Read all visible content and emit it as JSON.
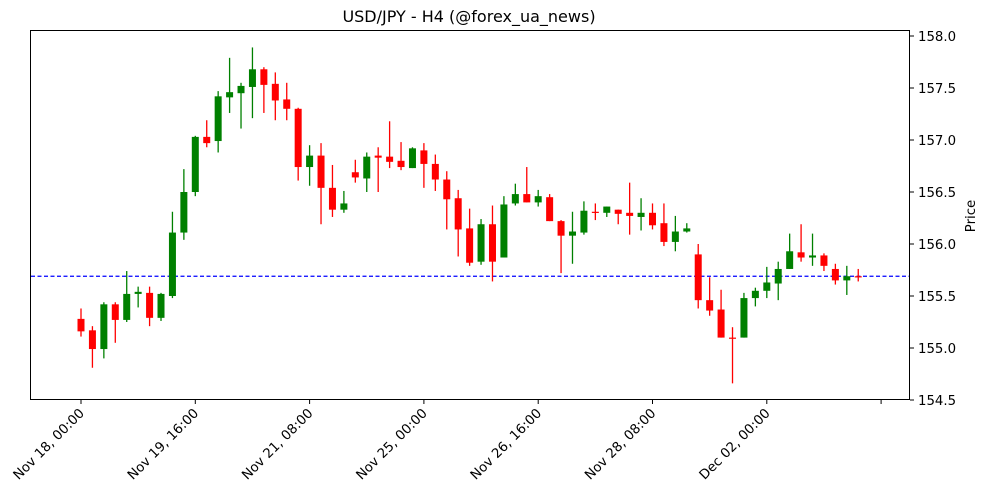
{
  "chart_data": {
    "type": "candlestick",
    "title": "USD/JPY - H4 (@forex_ua_news)",
    "xlabel": "",
    "ylabel": "Price",
    "ylim": [
      154.5,
      158.0
    ],
    "yticks": [
      "154.5",
      "155.0",
      "155.5",
      "156.0",
      "156.5",
      "157.0",
      "157.5",
      "158.0"
    ],
    "xtick_labels": [
      "Nov 18, 00:00",
      "Nov 19, 16:00",
      "Nov 21, 08:00",
      "Nov 25, 00:00",
      "Nov 26, 16:00",
      "Nov 28, 08:00",
      "Dec 02, 00:00",
      ""
    ],
    "xtick_candle_index": [
      0,
      10,
      20,
      30,
      40,
      50,
      60,
      70
    ],
    "grid": false,
    "colors": {
      "up": "#008000",
      "down": "#ff0000",
      "hline": "#0000ff"
    },
    "hline": {
      "value": 155.69,
      "style": "dashed",
      "color": "#0000ff"
    },
    "series": [
      {
        "name": "USD/JPY H4",
        "candles": [
          {
            "o": 155.28,
            "h": 155.38,
            "l": 155.11,
            "c": 155.16
          },
          {
            "o": 155.17,
            "h": 155.21,
            "l": 154.81,
            "c": 154.99
          },
          {
            "o": 154.99,
            "h": 155.44,
            "l": 154.9,
            "c": 155.42
          },
          {
            "o": 155.42,
            "h": 155.44,
            "l": 155.05,
            "c": 155.27
          },
          {
            "o": 155.27,
            "h": 155.74,
            "l": 155.25,
            "c": 155.52
          },
          {
            "o": 155.52,
            "h": 155.59,
            "l": 155.39,
            "c": 155.54
          },
          {
            "o": 155.53,
            "h": 155.59,
            "l": 155.21,
            "c": 155.29
          },
          {
            "o": 155.29,
            "h": 155.53,
            "l": 155.26,
            "c": 155.52
          },
          {
            "o": 155.5,
            "h": 156.31,
            "l": 155.48,
            "c": 156.11
          },
          {
            "o": 156.11,
            "h": 156.72,
            "l": 156.04,
            "c": 156.5
          },
          {
            "o": 156.5,
            "h": 157.04,
            "l": 156.46,
            "c": 157.03
          },
          {
            "o": 157.03,
            "h": 157.19,
            "l": 156.93,
            "c": 156.97
          },
          {
            "o": 156.99,
            "h": 157.47,
            "l": 156.88,
            "c": 157.42
          },
          {
            "o": 157.41,
            "h": 157.79,
            "l": 157.26,
            "c": 157.46
          },
          {
            "o": 157.45,
            "h": 157.55,
            "l": 157.11,
            "c": 157.52
          },
          {
            "o": 157.51,
            "h": 157.89,
            "l": 157.21,
            "c": 157.68
          },
          {
            "o": 157.68,
            "h": 157.7,
            "l": 157.26,
            "c": 157.53
          },
          {
            "o": 157.54,
            "h": 157.65,
            "l": 157.19,
            "c": 157.38
          },
          {
            "o": 157.39,
            "h": 157.55,
            "l": 157.19,
            "c": 157.3
          },
          {
            "o": 157.3,
            "h": 157.31,
            "l": 156.61,
            "c": 156.74
          },
          {
            "o": 156.74,
            "h": 156.95,
            "l": 156.56,
            "c": 156.85
          },
          {
            "o": 156.85,
            "h": 156.97,
            "l": 156.19,
            "c": 156.54
          },
          {
            "o": 156.54,
            "h": 156.76,
            "l": 156.26,
            "c": 156.33
          },
          {
            "o": 156.33,
            "h": 156.51,
            "l": 156.3,
            "c": 156.39
          },
          {
            "o": 156.69,
            "h": 156.81,
            "l": 156.59,
            "c": 156.64
          },
          {
            "o": 156.63,
            "h": 156.88,
            "l": 156.5,
            "c": 156.84
          },
          {
            "o": 156.85,
            "h": 156.93,
            "l": 156.5,
            "c": 156.83
          },
          {
            "o": 156.84,
            "h": 157.18,
            "l": 156.73,
            "c": 156.79
          },
          {
            "o": 156.8,
            "h": 156.98,
            "l": 156.71,
            "c": 156.74
          },
          {
            "o": 156.73,
            "h": 156.93,
            "l": 156.73,
            "c": 156.92
          },
          {
            "o": 156.9,
            "h": 156.97,
            "l": 156.54,
            "c": 156.77
          },
          {
            "o": 156.77,
            "h": 156.86,
            "l": 156.51,
            "c": 156.62
          },
          {
            "o": 156.62,
            "h": 156.7,
            "l": 156.14,
            "c": 156.43
          },
          {
            "o": 156.44,
            "h": 156.52,
            "l": 155.88,
            "c": 156.14
          },
          {
            "o": 156.15,
            "h": 156.34,
            "l": 155.79,
            "c": 155.82
          },
          {
            "o": 155.83,
            "h": 156.24,
            "l": 155.8,
            "c": 156.19
          },
          {
            "o": 156.19,
            "h": 156.37,
            "l": 155.64,
            "c": 155.83
          },
          {
            "o": 155.87,
            "h": 156.46,
            "l": 155.87,
            "c": 156.38
          },
          {
            "o": 156.39,
            "h": 156.58,
            "l": 156.37,
            "c": 156.48
          },
          {
            "o": 156.48,
            "h": 156.74,
            "l": 156.4,
            "c": 156.4
          },
          {
            "o": 156.4,
            "h": 156.52,
            "l": 156.36,
            "c": 156.46
          },
          {
            "o": 156.45,
            "h": 156.48,
            "l": 156.22,
            "c": 156.22
          },
          {
            "o": 156.22,
            "h": 156.23,
            "l": 155.72,
            "c": 156.08
          },
          {
            "o": 156.08,
            "h": 156.31,
            "l": 155.81,
            "c": 156.12
          },
          {
            "o": 156.11,
            "h": 156.41,
            "l": 156.09,
            "c": 156.32
          },
          {
            "o": 156.31,
            "h": 156.39,
            "l": 156.23,
            "c": 156.3
          },
          {
            "o": 156.3,
            "h": 156.36,
            "l": 156.26,
            "c": 156.36
          },
          {
            "o": 156.33,
            "h": 156.33,
            "l": 156.19,
            "c": 156.29
          },
          {
            "o": 156.3,
            "h": 156.59,
            "l": 156.09,
            "c": 156.27
          },
          {
            "o": 156.26,
            "h": 156.44,
            "l": 156.13,
            "c": 156.3
          },
          {
            "o": 156.3,
            "h": 156.39,
            "l": 156.14,
            "c": 156.18
          },
          {
            "o": 156.2,
            "h": 156.39,
            "l": 155.98,
            "c": 156.02
          },
          {
            "o": 156.02,
            "h": 156.27,
            "l": 155.93,
            "c": 156.12
          },
          {
            "o": 156.12,
            "h": 156.2,
            "l": 156.11,
            "c": 156.15
          },
          {
            "o": 155.9,
            "h": 156.0,
            "l": 155.38,
            "c": 155.46
          },
          {
            "o": 155.46,
            "h": 155.68,
            "l": 155.31,
            "c": 155.36
          },
          {
            "o": 155.37,
            "h": 155.56,
            "l": 155.1,
            "c": 155.1
          },
          {
            "o": 155.1,
            "h": 155.2,
            "l": 154.66,
            "c": 155.09
          },
          {
            "o": 155.1,
            "h": 155.53,
            "l": 155.1,
            "c": 155.48
          },
          {
            "o": 155.48,
            "h": 155.58,
            "l": 155.4,
            "c": 155.55
          },
          {
            "o": 155.55,
            "h": 155.78,
            "l": 155.48,
            "c": 155.63
          },
          {
            "o": 155.62,
            "h": 155.83,
            "l": 155.46,
            "c": 155.76
          },
          {
            "o": 155.76,
            "h": 156.1,
            "l": 155.76,
            "c": 155.93
          },
          {
            "o": 155.92,
            "h": 156.19,
            "l": 155.83,
            "c": 155.87
          },
          {
            "o": 155.87,
            "h": 156.1,
            "l": 155.79,
            "c": 155.89
          },
          {
            "o": 155.89,
            "h": 155.91,
            "l": 155.74,
            "c": 155.79
          },
          {
            "o": 155.76,
            "h": 155.81,
            "l": 155.61,
            "c": 155.65
          },
          {
            "o": 155.65,
            "h": 155.79,
            "l": 155.51,
            "c": 155.69
          },
          {
            "o": 155.69,
            "h": 155.76,
            "l": 155.64,
            "c": 155.68
          }
        ]
      }
    ]
  }
}
